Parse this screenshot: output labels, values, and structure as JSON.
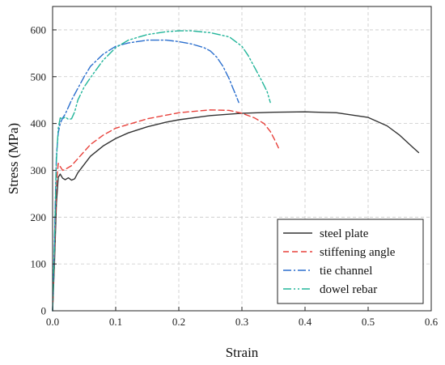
{
  "chart_data": {
    "type": "line",
    "title": "",
    "xlabel": "Strain",
    "ylabel": "Stress (MPa)",
    "xlim": [
      0.0,
      0.6
    ],
    "ylim": [
      0,
      650
    ],
    "xticks": [
      "0.0",
      "0.1",
      "0.2",
      "0.3",
      "0.4",
      "0.5",
      "0.6"
    ],
    "yticks": [
      "0",
      "100",
      "200",
      "300",
      "400",
      "500",
      "600"
    ],
    "grid": true,
    "legend_position": "bottom-right",
    "series": [
      {
        "name": "steel plate",
        "color": "#333333",
        "dash": "solid",
        "x": [
          0.0,
          0.003,
          0.006,
          0.009,
          0.012,
          0.016,
          0.02,
          0.025,
          0.03,
          0.035,
          0.04,
          0.06,
          0.08,
          0.1,
          0.12,
          0.15,
          0.18,
          0.2,
          0.25,
          0.3,
          0.35,
          0.4,
          0.45,
          0.5,
          0.53,
          0.55,
          0.57,
          0.58
        ],
        "y": [
          0,
          100,
          230,
          285,
          292,
          283,
          280,
          284,
          279,
          282,
          295,
          330,
          352,
          368,
          380,
          393,
          403,
          408,
          417,
          422,
          424,
          425,
          423,
          413,
          395,
          375,
          350,
          338
        ]
      },
      {
        "name": "stiffening angle",
        "color": "#e8423c",
        "dash": "7 4",
        "x": [
          0.0,
          0.003,
          0.006,
          0.009,
          0.012,
          0.016,
          0.02,
          0.025,
          0.03,
          0.04,
          0.06,
          0.08,
          0.1,
          0.15,
          0.2,
          0.25,
          0.28,
          0.3,
          0.32,
          0.335,
          0.345,
          0.352,
          0.358
        ],
        "y": [
          0,
          120,
          270,
          315,
          308,
          300,
          302,
          306,
          310,
          325,
          355,
          375,
          390,
          410,
          423,
          429,
          428,
          422,
          412,
          400,
          383,
          365,
          348
        ]
      },
      {
        "name": "tie channel",
        "color": "#2b6fce",
        "dash": "10 3 2 3",
        "x": [
          0.0,
          0.003,
          0.006,
          0.009,
          0.012,
          0.016,
          0.02,
          0.025,
          0.03,
          0.04,
          0.05,
          0.06,
          0.08,
          0.1,
          0.12,
          0.15,
          0.18,
          0.2,
          0.22,
          0.24,
          0.25,
          0.26,
          0.27,
          0.28,
          0.285,
          0.29,
          0.295
        ],
        "y": [
          0,
          150,
          330,
          380,
          400,
          412,
          420,
          435,
          450,
          475,
          500,
          522,
          548,
          565,
          572,
          578,
          578,
          575,
          570,
          562,
          555,
          542,
          522,
          495,
          478,
          462,
          445
        ]
      },
      {
        "name": "dowel rebar",
        "color": "#22b59a",
        "dash": "10 3 2 3 2 3",
        "x": [
          0.0,
          0.003,
          0.006,
          0.009,
          0.012,
          0.016,
          0.02,
          0.025,
          0.03,
          0.035,
          0.04,
          0.05,
          0.06,
          0.08,
          0.1,
          0.12,
          0.15,
          0.18,
          0.2,
          0.22,
          0.25,
          0.28,
          0.3,
          0.31,
          0.32,
          0.33,
          0.34,
          0.345
        ],
        "y": [
          0,
          140,
          320,
          390,
          412,
          410,
          414,
          409,
          410,
          425,
          450,
          478,
          498,
          535,
          562,
          578,
          590,
          596,
          598,
          598,
          594,
          585,
          565,
          545,
          520,
          495,
          468,
          445
        ]
      }
    ]
  }
}
